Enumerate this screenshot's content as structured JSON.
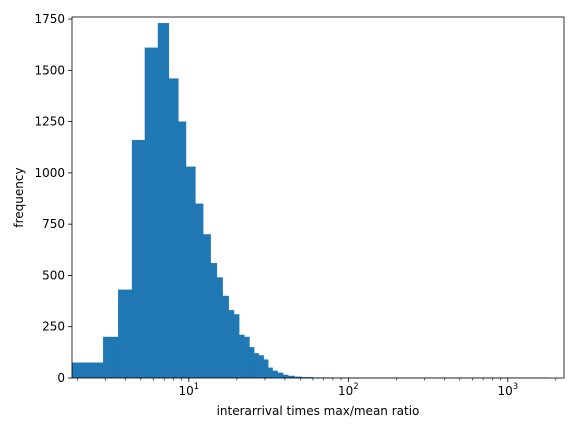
{
  "chart_data": {
    "type": "bar",
    "xlabel": "interarrival times max/mean ratio",
    "ylabel": "frequency",
    "xscale": "log",
    "xlim": [
      1.85,
      2250
    ],
    "ylim": [
      0,
      1760
    ],
    "grid": false,
    "legend": "none",
    "bar_color": "#1f77b4",
    "x_tick_labels": [
      {
        "base": "10",
        "exp": "1",
        "value": 10
      },
      {
        "base": "10",
        "exp": "2",
        "value": 100
      },
      {
        "base": "10",
        "exp": "3",
        "value": 1000
      }
    ],
    "y_tick_labels": [
      {
        "label": "0",
        "value": 0
      },
      {
        "label": "250",
        "value": 250
      },
      {
        "label": "500",
        "value": 500
      },
      {
        "label": "750",
        "value": 750
      },
      {
        "label": "1000",
        "value": 1000
      },
      {
        "label": "1250",
        "value": 1250
      },
      {
        "label": "1500",
        "value": 1500
      },
      {
        "label": "1750",
        "value": 1750
      }
    ],
    "bins": [
      {
        "x0": 1.85,
        "x1": 2.9,
        "value": 75
      },
      {
        "x0": 2.9,
        "x1": 3.6,
        "value": 200
      },
      {
        "x0": 3.6,
        "x1": 4.4,
        "value": 430
      },
      {
        "x0": 4.4,
        "x1": 5.3,
        "value": 1160
      },
      {
        "x0": 5.3,
        "x1": 6.4,
        "value": 1610
      },
      {
        "x0": 6.4,
        "x1": 7.5,
        "value": 1730
      },
      {
        "x0": 7.5,
        "x1": 8.6,
        "value": 1460
      },
      {
        "x0": 8.6,
        "x1": 9.6,
        "value": 1250
      },
      {
        "x0": 9.6,
        "x1": 11.0,
        "value": 1030
      },
      {
        "x0": 11.0,
        "x1": 12.3,
        "value": 850
      },
      {
        "x0": 12.3,
        "x1": 13.7,
        "value": 700
      },
      {
        "x0": 13.7,
        "x1": 15.0,
        "value": 560
      },
      {
        "x0": 15.0,
        "x1": 16.3,
        "value": 490
      },
      {
        "x0": 16.3,
        "x1": 17.8,
        "value": 400
      },
      {
        "x0": 17.8,
        "x1": 19.2,
        "value": 330
      },
      {
        "x0": 19.2,
        "x1": 20.7,
        "value": 310
      },
      {
        "x0": 20.7,
        "x1": 22.3,
        "value": 210
      },
      {
        "x0": 22.3,
        "x1": 24.0,
        "value": 200
      },
      {
        "x0": 24.0,
        "x1": 25.7,
        "value": 150
      },
      {
        "x0": 25.7,
        "x1": 27.5,
        "value": 120
      },
      {
        "x0": 27.5,
        "x1": 29.5,
        "value": 110
      },
      {
        "x0": 29.5,
        "x1": 31.5,
        "value": 90
      },
      {
        "x0": 31.5,
        "x1": 33.5,
        "value": 50
      },
      {
        "x0": 33.5,
        "x1": 36.0,
        "value": 35
      },
      {
        "x0": 36.0,
        "x1": 39.0,
        "value": 25
      },
      {
        "x0": 39.0,
        "x1": 42.0,
        "value": 15
      },
      {
        "x0": 42.0,
        "x1": 46.0,
        "value": 10
      },
      {
        "x0": 46.0,
        "x1": 51.0,
        "value": 6
      },
      {
        "x0": 51.0,
        "x1": 60.0,
        "value": 4
      },
      {
        "x0": 60.0,
        "x1": 80.0,
        "value": 2
      },
      {
        "x0": 80.0,
        "x1": 110.0,
        "value": 1
      },
      {
        "x0": 110.0,
        "x1": 200.0,
        "value": 1
      },
      {
        "x0": 200.0,
        "x1": 500.0,
        "value": 1
      },
      {
        "x0": 500.0,
        "x1": 1000.0,
        "value": 1
      },
      {
        "x0": 1000.0,
        "x1": 1800.0,
        "value": 1
      }
    ]
  }
}
